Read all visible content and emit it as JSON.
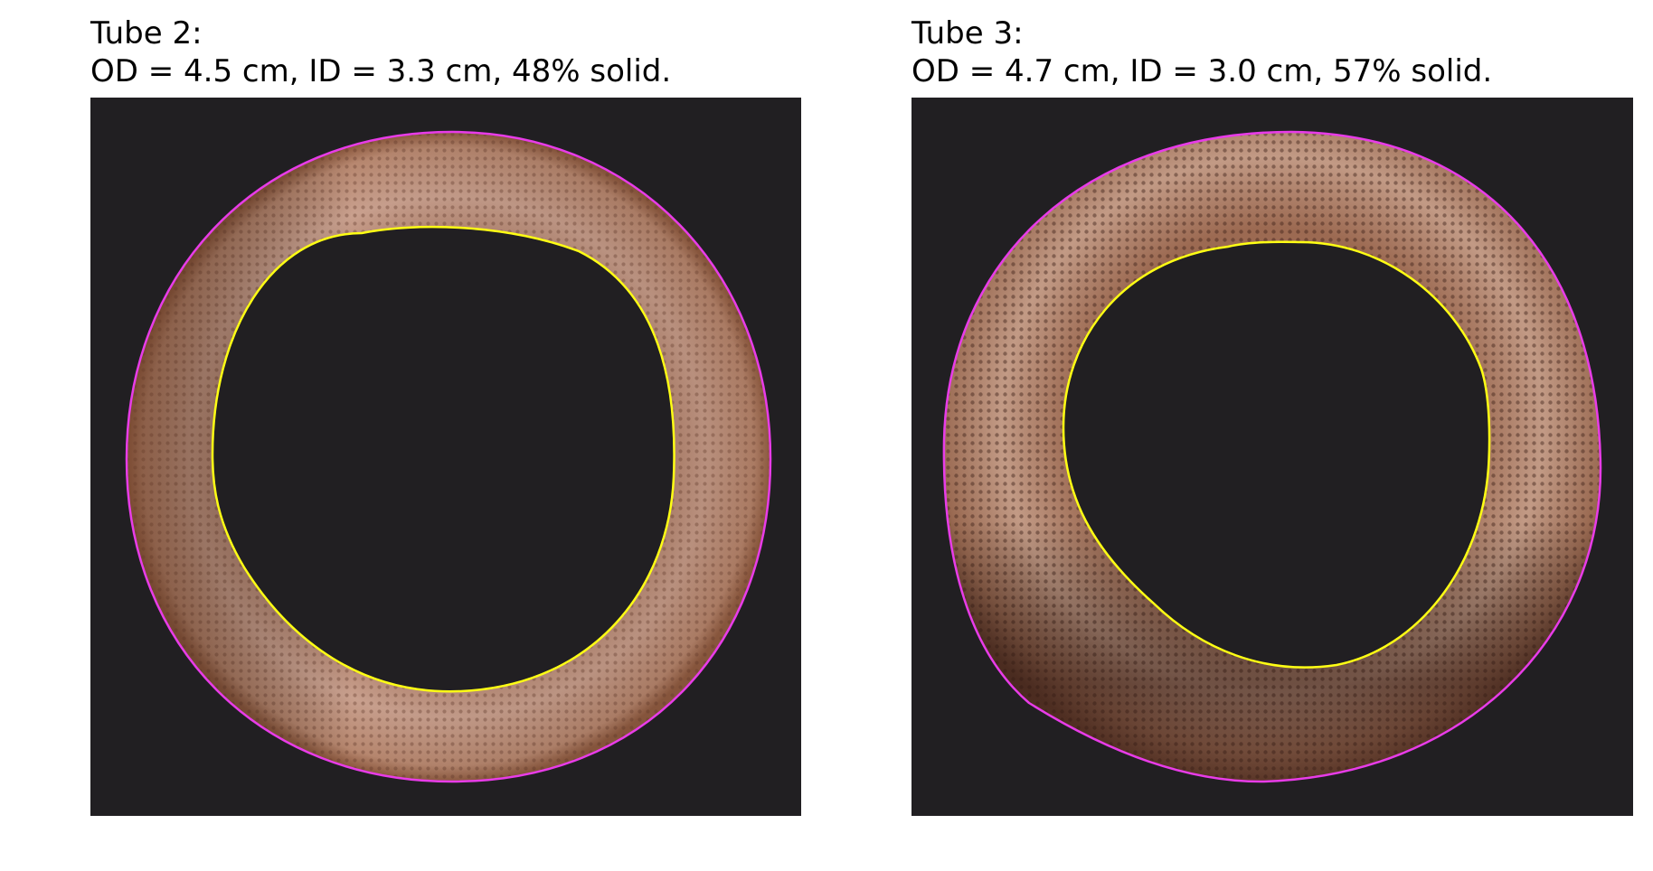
{
  "panels": [
    {
      "title_line1": "Tube 2:",
      "title_line2": "OD = 4.5 cm, ID = 3.3 cm, 48% solid."
    },
    {
      "title_line1": "Tube 3:",
      "title_line2": "OD = 4.7 cm, ID = 3.0 cm, 57% solid."
    }
  ],
  "colors": {
    "background": "#211f22",
    "outer_contour": "#e83ce8",
    "inner_contour": "#ffff14",
    "tube_light": "#c8a090",
    "tube_dark": "#6a3c2a"
  }
}
